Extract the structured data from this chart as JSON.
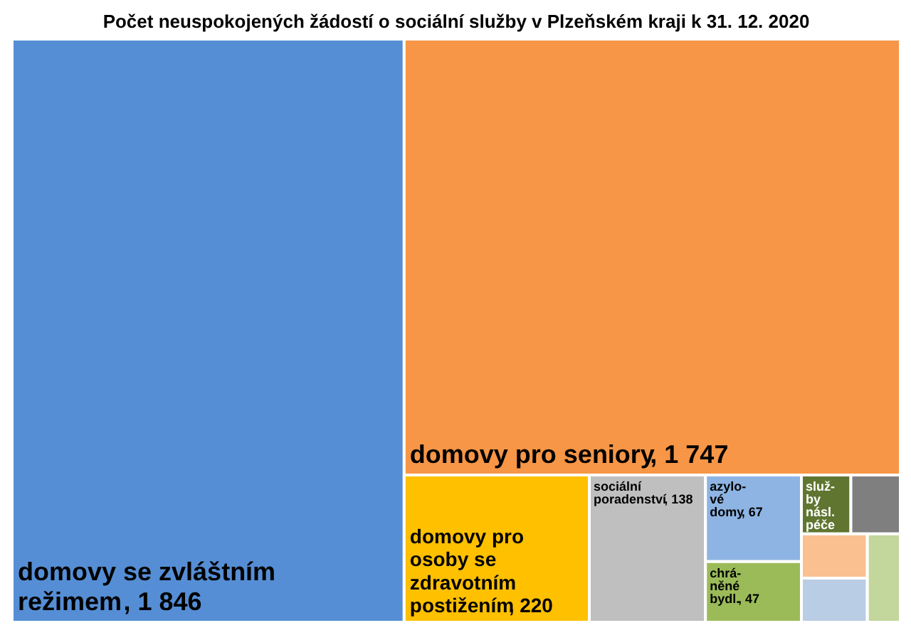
{
  "chart_data": {
    "type": "other",
    "title": "Počet neuspokojených žádostí o sociální služby v Plzeňském kraji k 31. 12. 2020",
    "categories": [
      "domovy se zvláštním\nrežimem",
      "domovy pro seniory",
      "domovy pro\nosoby se\nzdravotním\npostižením",
      "sociální\nporadenství",
      "azylo-\nvé\ndomy",
      "chrá-\nněné\nbydl.",
      "služ-\nby\nnásl.\npéče",
      null,
      null,
      null,
      null
    ],
    "values": [
      1846,
      1747,
      220,
      138,
      67,
      47,
      null,
      null,
      null,
      null,
      null
    ],
    "value_labels": [
      ", 1 846",
      ", 1 747",
      ",  220",
      ", 138",
      ", 67",
      ", 47",
      null,
      null,
      null,
      null,
      null
    ],
    "colors": [
      "#558ed5",
      "#f79646",
      "#ffc000",
      "#bfbfbf",
      "#8eb4e3",
      "#9bbb59",
      "#5f7530",
      "#7f7f7f",
      "#fac090",
      "#b9cde5",
      "#c3d69b"
    ]
  }
}
